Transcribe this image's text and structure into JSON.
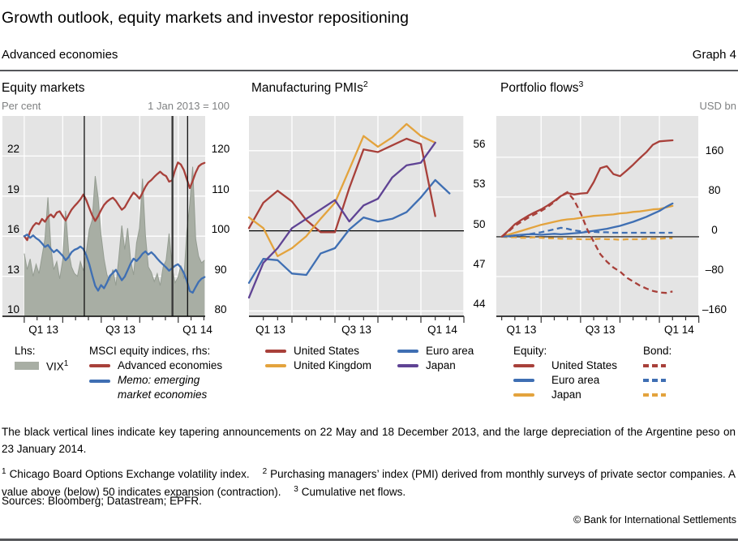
{
  "header": {
    "title": "Growth outlook, equity markets and investor repositioning",
    "subtitle": "Advanced economies",
    "graph_label": "Graph 4"
  },
  "colors": {
    "red": "#a8403a",
    "blue": "#3f6fb3",
    "yellow": "#e3a33d",
    "purple": "#5f4394",
    "vix_fill": "#a8aea4",
    "vix_edge": "#949c91",
    "plot_bg": "#e4e4e4",
    "grid": "#ffffff",
    "axis": "#000000",
    "tick": "#333333",
    "event_line": "#111111",
    "event_line_thick": "#3a3a3a",
    "unit_text": "#7f8182"
  },
  "chart_data": [
    {
      "id": "equity-markets",
      "type": "area+line",
      "title": "Equity markets",
      "title_sup": "",
      "unit_left": "Per cent",
      "unit_right": "1 Jan 2013 = 100",
      "x": {
        "min": -1.7,
        "max": 14.1,
        "grid_months": [
          0,
          3,
          6,
          9,
          12
        ],
        "ticks": [
          0,
          1,
          2,
          3,
          4,
          5,
          6,
          7,
          8,
          9,
          10,
          11,
          12,
          13,
          14
        ],
        "big_ticks": [
          0,
          3,
          6,
          9,
          12
        ],
        "labels": [
          {
            "text": "Q1 13",
            "m": 1.5
          },
          {
            "text": "Q3 13",
            "m": 7.5
          },
          {
            "text": "Q1 14",
            "m": 13.5
          }
        ]
      },
      "y_left": {
        "min": 10,
        "max": 25,
        "labels": [
          {
            "v": 22,
            "t": "22"
          },
          {
            "v": 19,
            "t": "19"
          },
          {
            "v": 16,
            "t": "16"
          },
          {
            "v": 13,
            "t": "13"
          },
          {
            "v": 10,
            "t": "10"
          }
        ]
      },
      "y_right": {
        "min": 80,
        "max": 130,
        "grid": [
          120,
          110,
          100,
          90,
          80
        ],
        "labels": [
          {
            "v": 120,
            "t": "120"
          },
          {
            "v": 110,
            "t": "110"
          },
          {
            "v": 100,
            "t": "100"
          },
          {
            "v": 90,
            "t": "90"
          },
          {
            "v": 80,
            "t": "80"
          }
        ]
      },
      "events": {
        "dates": [
          "22 May 2013",
          "18 December 2013",
          "23 January 2014"
        ],
        "months": [
          4.68,
          11.55,
          12.73
        ]
      },
      "legend": {
        "lhs_header": "Lhs:",
        "rhs_header": "MSCI equity indices, rhs:"
      },
      "series": [
        {
          "name": "VIX",
          "sup": "1",
          "axis": "left",
          "type": "area",
          "color": "vix_fill",
          "edge": "vix_edge",
          "z": 0,
          "x_start": 0,
          "x_step": 0.2303,
          "values": [
            14.7,
            13.5,
            14.3,
            13.0,
            13.9,
            13.2,
            14.5,
            15.8,
            18.9,
            15.2,
            13.5,
            14.1,
            12.8,
            14.2,
            17.9,
            14.9,
            13.7,
            13.2,
            13.0,
            14.1,
            13.4,
            14.8,
            16.5,
            17.2,
            20.5,
            18.9,
            16.1,
            14.3,
            13.1,
            12.7,
            13.5,
            12.3,
            14.4,
            16.8,
            15.0,
            16.6,
            14.2,
            13.1,
            15.5,
            16.6,
            20.3,
            16.1,
            13.7,
            13.3,
            12.6,
            13.2,
            12.3,
            13.7,
            14.2,
            16.2,
            13.8,
            12.5,
            12.9,
            13.8,
            12.8,
            16.3,
            18.4,
            21.2,
            15.8,
            14.5,
            14.0,
            14.2
          ]
        },
        {
          "name": "Advanced economies",
          "axis": "right",
          "type": "line",
          "color": "red",
          "z": 1,
          "x_start": 0,
          "x_step": 0.2303,
          "values": [
            100.0,
            99.0,
            101.2,
            102.5,
            103.3,
            103.0,
            104.3,
            103.6,
            104.8,
            105.4,
            104.7,
            105.9,
            106.2,
            105.0,
            103.9,
            105.3,
            106.6,
            107.5,
            108.3,
            109.2,
            110.4,
            109.0,
            107.0,
            105.2,
            103.8,
            105.0,
            106.5,
            107.8,
            108.6,
            109.2,
            109.6,
            108.8,
            107.7,
            106.6,
            107.2,
            108.5,
            109.8,
            110.9,
            110.2,
            109.4,
            110.8,
            112.3,
            113.4,
            114.0,
            114.8,
            115.5,
            116.1,
            115.4,
            115.0,
            113.6,
            113.9,
            116.4,
            118.4,
            117.9,
            116.5,
            114.3,
            112.0,
            113.8,
            115.9,
            117.4,
            118.0,
            118.3
          ]
        },
        {
          "name": "Memo: emerging market economies",
          "italic": true,
          "axis": "right",
          "type": "line",
          "color": "blue",
          "z": 2,
          "x_start": 0,
          "x_step": 0.2303,
          "values": [
            100.0,
            100.4,
            99.6,
            100.2,
            99.5,
            99.0,
            98.2,
            97.3,
            97.8,
            96.8,
            96.0,
            96.6,
            95.9,
            95.1,
            94.0,
            94.8,
            96.0,
            96.6,
            96.9,
            97.4,
            96.8,
            95.2,
            93.0,
            90.2,
            87.6,
            86.4,
            87.8,
            87.0,
            88.4,
            90.1,
            90.8,
            91.6,
            90.3,
            89.0,
            89.9,
            91.5,
            93.2,
            94.4,
            93.8,
            94.6,
            95.6,
            96.2,
            95.4,
            96.0,
            95.3,
            94.4,
            93.6,
            92.9,
            92.2,
            91.4,
            92.0,
            92.6,
            93.0,
            92.2,
            90.8,
            88.9,
            86.3,
            85.9,
            87.3,
            88.6,
            89.4,
            89.8
          ]
        }
      ]
    },
    {
      "id": "manufacturing-pmis",
      "type": "line",
      "title": "Manufacturing PMIs",
      "title_sup": "2",
      "x": {
        "min": 0,
        "max": 15,
        "grid_months": [
          3,
          6,
          9,
          12,
          15
        ],
        "ticks": [
          1,
          2,
          3,
          4,
          5,
          6,
          7,
          8,
          9,
          10,
          11,
          12,
          13,
          14,
          15
        ],
        "big_ticks": [
          3,
          6,
          9,
          12,
          15
        ],
        "labels": [
          {
            "text": "Q1 13",
            "m": 1.5
          },
          {
            "text": "Q3 13",
            "m": 7.5
          },
          {
            "text": "Q1 14",
            "m": 13.5
          }
        ]
      },
      "y": {
        "min": 43.6,
        "max": 58.6,
        "grid": [
          56,
          53,
          50,
          47,
          44
        ],
        "ref_line": 50,
        "labels": [
          {
            "v": 56,
            "t": "56"
          },
          {
            "v": 53,
            "t": "53"
          },
          {
            "v": 50,
            "t": "50"
          },
          {
            "v": 47,
            "t": "47"
          },
          {
            "v": 44,
            "t": "44"
          }
        ]
      },
      "series": [
        {
          "name": "United States",
          "type": "line",
          "color": "red",
          "z": 1,
          "x_start": 0,
          "x_step": 1,
          "values": [
            50.2,
            52.1,
            53.0,
            52.2,
            50.8,
            49.9,
            49.9,
            53.2,
            56.1,
            55.9,
            56.4,
            56.9,
            56.5,
            51.1
          ]
        },
        {
          "name": "United Kingdom",
          "type": "line",
          "color": "yellow",
          "z": 2,
          "x_start": 0,
          "x_step": 1,
          "values": [
            51.0,
            50.2,
            48.1,
            48.7,
            49.6,
            50.9,
            52.1,
            54.6,
            57.1,
            56.3,
            57.0,
            58.0,
            57.1,
            56.6
          ]
        },
        {
          "name": "Euro area",
          "type": "line",
          "color": "blue",
          "z": 0,
          "x_start": 0,
          "x_step": 1,
          "values": [
            46.1,
            47.9,
            47.8,
            46.8,
            46.7,
            48.3,
            48.7,
            50.1,
            51.0,
            50.7,
            50.9,
            51.4,
            52.5,
            53.8,
            52.8
          ]
        },
        {
          "name": "Japan",
          "type": "line",
          "color": "purple",
          "z": 3,
          "x_start": 0,
          "x_step": 1,
          "values": [
            45.0,
            47.6,
            48.7,
            50.2,
            50.9,
            51.6,
            52.3,
            50.7,
            51.9,
            52.4,
            54.0,
            54.9,
            55.1,
            56.6
          ]
        }
      ]
    },
    {
      "id": "portfolio-flows",
      "type": "line",
      "title": "Portfolio flows",
      "title_sup": "3",
      "unit_right": "USD bn",
      "x": {
        "min": -0.41,
        "max": 15.02,
        "grid_months": [
          3,
          6,
          9,
          12,
          15
        ],
        "ticks": [
          0,
          1,
          2,
          3,
          4,
          5,
          6,
          7,
          8,
          9,
          10,
          11,
          12,
          13,
          14,
          15
        ],
        "big_ticks": [
          3,
          6,
          9,
          12,
          15
        ],
        "labels": [
          {
            "text": "Q1 13",
            "m": 1.5
          },
          {
            "text": "Q3 13",
            "m": 7.5
          },
          {
            "text": "Q1 14",
            "m": 13.5
          }
        ]
      },
      "y": {
        "min": -160,
        "max": 243,
        "grid": [
          160,
          80,
          0,
          -80
        ],
        "ref_line": 0,
        "labels": [
          {
            "v": 160,
            "t": "160"
          },
          {
            "v": 80,
            "t": "80"
          },
          {
            "v": 0,
            "t": "0"
          },
          {
            "v": -80,
            "t": "–80"
          },
          {
            "v": -160,
            "t": "–160"
          }
        ]
      },
      "legend": {
        "equity_header": "Equity:",
        "bond_header": "Bond:"
      },
      "series": [
        {
          "name": "United States",
          "group": "equity",
          "type": "line",
          "color": "red",
          "z": 2,
          "x_start": 0,
          "x_step": 0.5,
          "values": [
            0,
            12,
            25,
            34,
            42,
            49,
            55,
            63,
            72,
            82,
            88,
            85,
            87,
            88,
            110,
            138,
            142,
            126,
            122,
            133,
            145,
            158,
            170,
            185,
            192,
            193,
            194
          ]
        },
        {
          "name": "Euro area",
          "group": "equity",
          "type": "line",
          "color": "blue",
          "z": 1,
          "x_start": 0,
          "x_step": 0.5,
          "values": [
            0,
            1,
            3,
            4,
            5,
            5,
            4,
            5,
            6,
            5,
            6,
            7,
            8,
            10,
            12,
            14,
            16,
            19,
            22,
            26,
            30,
            35,
            40,
            46,
            52,
            60,
            67
          ]
        },
        {
          "name": "Japan",
          "group": "equity",
          "type": "line",
          "color": "yellow",
          "z": 0,
          "x_start": 0,
          "x_step": 0.5,
          "values": [
            0,
            4,
            8,
            12,
            16,
            20,
            24,
            27,
            30,
            33,
            35,
            36,
            38,
            40,
            42,
            43,
            44,
            45,
            47,
            48,
            50,
            51,
            53,
            55,
            56,
            59,
            62
          ]
        },
        {
          "name": "United States",
          "group": "bond",
          "type": "line",
          "dash": true,
          "color": "red",
          "z": 5,
          "x_start": 0,
          "x_step": 0.5,
          "values": [
            0,
            10,
            22,
            30,
            38,
            45,
            52,
            60,
            70,
            82,
            90,
            74,
            48,
            15,
            -10,
            -35,
            -50,
            -62,
            -70,
            -82,
            -90,
            -98,
            -104,
            -109,
            -112,
            -113,
            -110
          ]
        },
        {
          "name": "Euro area",
          "group": "bond",
          "type": "line",
          "dash": true,
          "color": "blue",
          "z": 4,
          "x_start": 0,
          "x_step": 0.5,
          "values": [
            0,
            1,
            2,
            3,
            5,
            7,
            9,
            12,
            15,
            18,
            16,
            13,
            11,
            10,
            10,
            9,
            9,
            8,
            8,
            8,
            8,
            8,
            8,
            8,
            8,
            8,
            8
          ]
        },
        {
          "name": "Japan",
          "group": "bond",
          "type": "line",
          "dash": true,
          "color": "yellow",
          "z": 3,
          "x_start": 0,
          "x_step": 0.5,
          "values": [
            0,
            -1,
            -1,
            -2,
            -2,
            -1,
            -2,
            -3,
            -3,
            -4,
            -4,
            -4,
            -5,
            -5,
            -5,
            -4,
            -5,
            -5,
            -6,
            -5,
            -5,
            -5,
            -4,
            -4,
            -4,
            -3,
            -3
          ]
        }
      ]
    }
  ],
  "note": "The black vertical lines indicate key tapering announcements on 22 May and 18 December 2013, and the large depreciation of the Argentine peso on 23 January 2014.",
  "footnotes": [
    {
      "sup": "1",
      "text": "Chicago Board Options Exchange volatility index."
    },
    {
      "sup": "2",
      "text": "Purchasing managers’ index (PMI) derived from monthly surveys of private sector companies. A value above (below) 50 indicates expansion (contraction)."
    },
    {
      "sup": "3",
      "text": "Cumulative net flows."
    }
  ],
  "sources": "Sources: Bloomberg; Datastream; EPFR.",
  "copyright": "© Bank for International Settlements"
}
